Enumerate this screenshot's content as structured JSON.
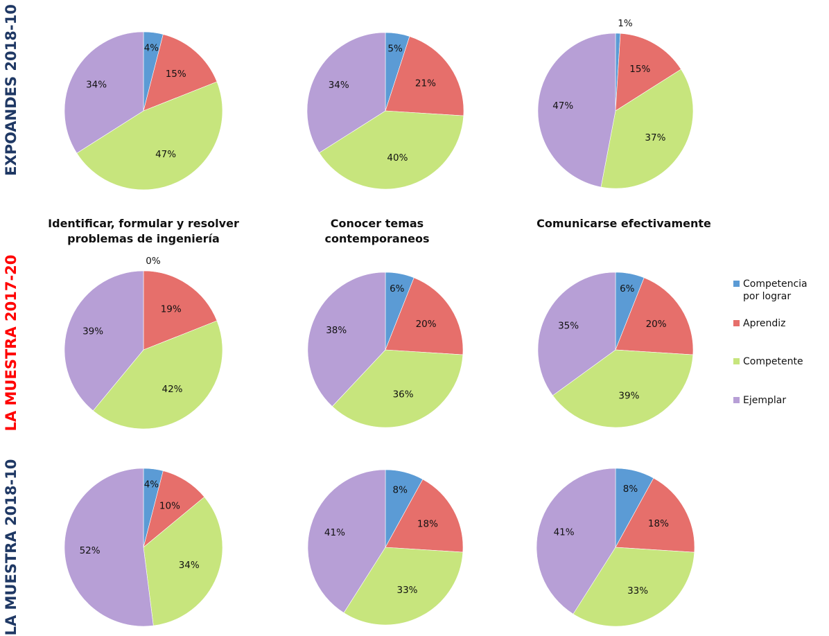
{
  "chart_data": {
    "type": "pie",
    "categories": [
      "Competencia por lograr",
      "Aprendiz",
      "Competente",
      "Ejemplar"
    ],
    "colors": {
      "Competencia por lograr": "#5b9bd5",
      "Aprendiz": "#e66f6b",
      "Competente": "#c7e57d",
      "Ejemplar": "#b79fd6"
    },
    "row_labels": [
      {
        "text": "EXPOANDES 2018-10",
        "color": "#1f3864"
      },
      {
        "text": "LA MUESTRA 2017-20",
        "color": "#ff0000"
      },
      {
        "text": "LA MUESTRA 2018-10",
        "color": "#1f3864"
      }
    ],
    "column_titles": [
      [
        "Identificar, formular y resolver",
        "problemas de ingeniería"
      ],
      [
        "Conocer temas",
        "contemporaneos"
      ],
      [
        "Comunicarse efectivamente"
      ]
    ],
    "legend": {
      "placement": "right",
      "entries": [
        [
          "Competencia",
          "por lograr"
        ],
        [
          "Aprendiz"
        ],
        [
          "Competente"
        ],
        [
          "Ejemplar"
        ]
      ]
    },
    "pies": [
      {
        "row": 0,
        "col": 0,
        "values": [
          4,
          15,
          47,
          34
        ],
        "labels": [
          "4%",
          "15%",
          "47%",
          "34%"
        ]
      },
      {
        "row": 0,
        "col": 1,
        "values": [
          5,
          21,
          40,
          34
        ],
        "labels": [
          "5%",
          "21%",
          "40%",
          "34%"
        ]
      },
      {
        "row": 0,
        "col": 2,
        "values": [
          1,
          15,
          37,
          47
        ],
        "labels": [
          "1%",
          "15%",
          "37%",
          "47%"
        ]
      },
      {
        "row": 1,
        "col": 0,
        "values": [
          0,
          19,
          42,
          39
        ],
        "labels": [
          "0%",
          "19%",
          "42%",
          "39%"
        ]
      },
      {
        "row": 1,
        "col": 1,
        "values": [
          6,
          20,
          36,
          38
        ],
        "labels": [
          "6%",
          "20%",
          "36%",
          "38%"
        ]
      },
      {
        "row": 1,
        "col": 2,
        "values": [
          6,
          20,
          39,
          35
        ],
        "labels": [
          "6%",
          "20%",
          "39%",
          "35%"
        ]
      },
      {
        "row": 2,
        "col": 0,
        "values": [
          4,
          10,
          34,
          52
        ],
        "labels": [
          "4%",
          "10%",
          "34%",
          "52%"
        ]
      },
      {
        "row": 2,
        "col": 1,
        "values": [
          8,
          18,
          33,
          41
        ],
        "labels": [
          "8%",
          "18%",
          "33%",
          "41%"
        ]
      },
      {
        "row": 2,
        "col": 2,
        "values": [
          8,
          18,
          33,
          41
        ],
        "labels": [
          "8%",
          "18%",
          "33%",
          "41%"
        ]
      }
    ]
  }
}
